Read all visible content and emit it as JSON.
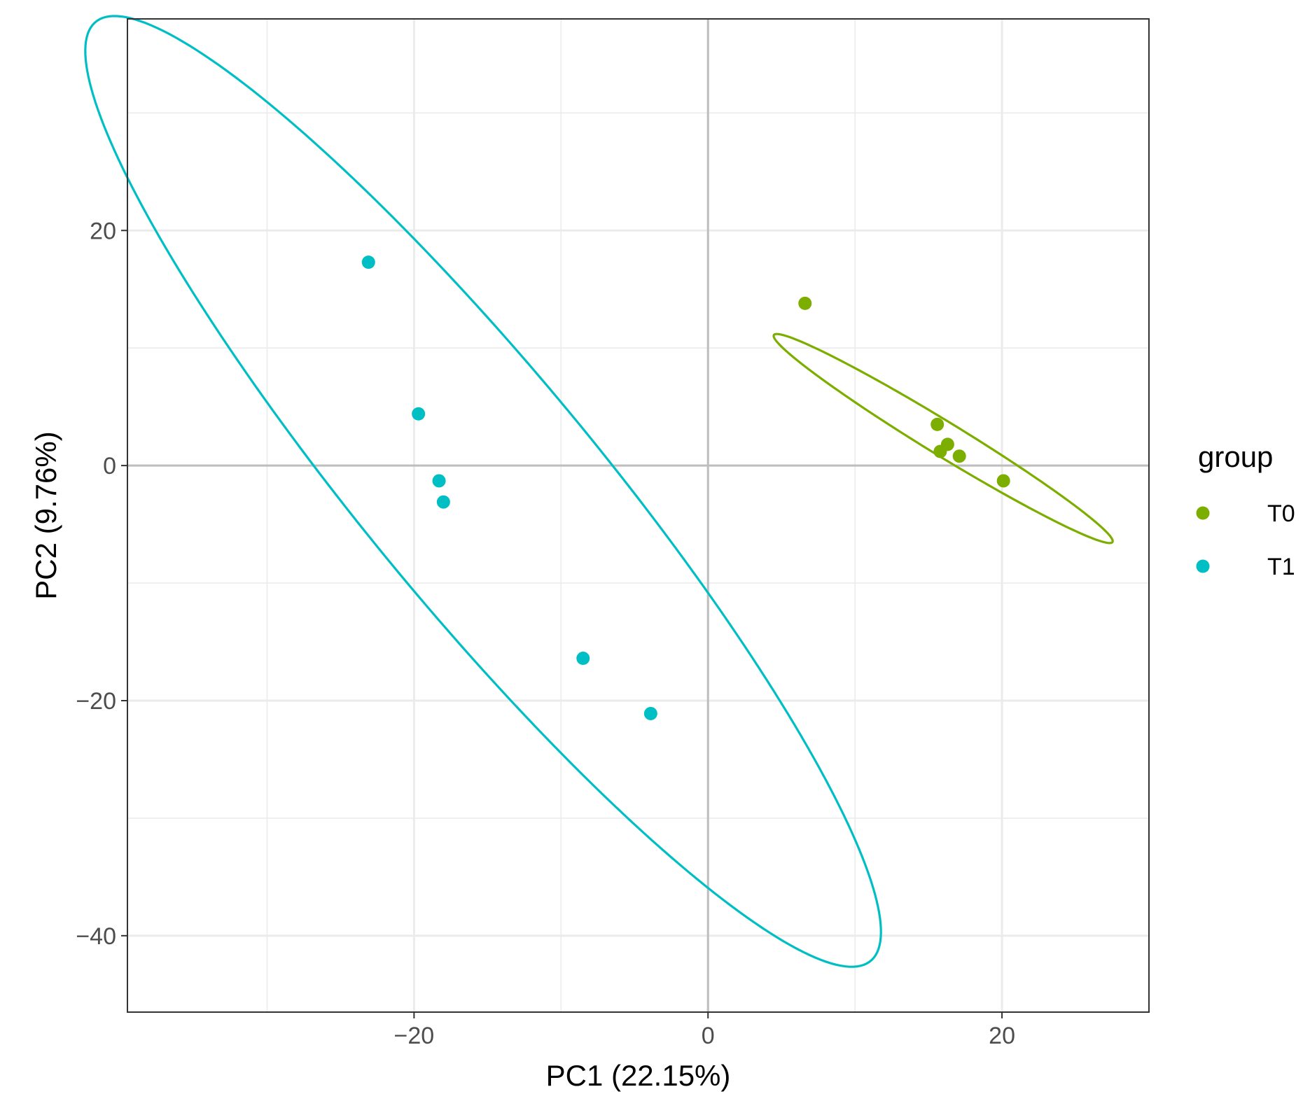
{
  "chart_data": {
    "type": "scatter",
    "xlabel": "PC1 (22.15%)",
    "ylabel": "PC2 (9.76%)",
    "xlim": [
      -39.5,
      30
    ],
    "ylim": [
      -46.5,
      38
    ],
    "x_ticks": [
      -20,
      0,
      20
    ],
    "y_ticks": [
      -40,
      -20,
      0,
      20
    ],
    "x_tick_labels": [
      "−20",
      "0",
      "20"
    ],
    "y_tick_labels": [
      "−40",
      "−20",
      "0",
      "20"
    ],
    "grid": true,
    "zero_lines": true,
    "legend": {
      "title": "group",
      "position": "right"
    },
    "series": [
      {
        "name": "T0",
        "color": "#7cae00",
        "points": [
          {
            "x": 6.6,
            "y": 13.8
          },
          {
            "x": 15.6,
            "y": 3.5
          },
          {
            "x": 16.3,
            "y": 1.8
          },
          {
            "x": 15.8,
            "y": 1.2
          },
          {
            "x": 17.1,
            "y": 0.8
          },
          {
            "x": 20.1,
            "y": -1.3
          }
        ],
        "ellipse": {
          "cx": 16.0,
          "cy": 2.3,
          "rx": 14.5,
          "ry": 1.35,
          "angle_deg": -37.5
        }
      },
      {
        "name": "T1",
        "color": "#00bfc4",
        "points": [
          {
            "x": -23.1,
            "y": 17.3
          },
          {
            "x": -19.7,
            "y": 4.4
          },
          {
            "x": -18.3,
            "y": -1.3
          },
          {
            "x": -18.0,
            "y": -3.1
          },
          {
            "x": -8.5,
            "y": -16.4
          },
          {
            "x": -3.9,
            "y": -21.1
          }
        ],
        "ellipse": {
          "cx": -15.3,
          "cy": -2.2,
          "rx": 47.9,
          "ry": 8.6,
          "angle_deg": -57
        }
      }
    ]
  }
}
